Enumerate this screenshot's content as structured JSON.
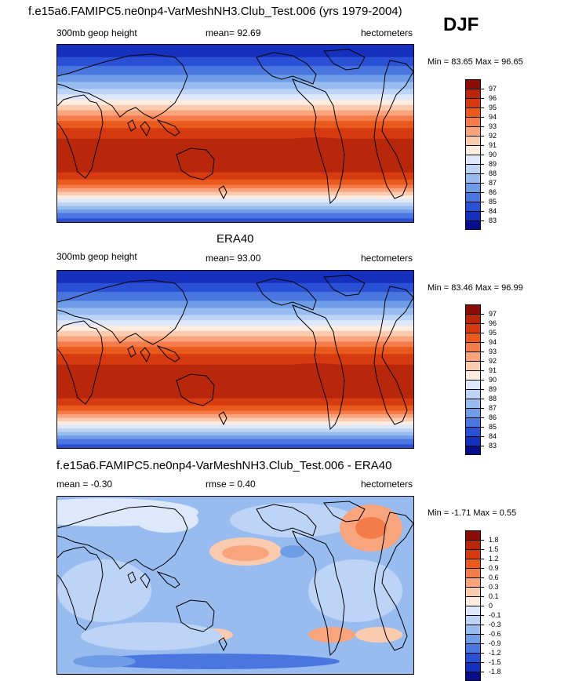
{
  "panel1": {
    "title": "f.e15a6.FAMIPC5.ne0np4-VarMeshNH3.Club_Test.006 (yrs 1979-2004)",
    "left": "300mb geop height",
    "center": "mean=  92.69",
    "right": "hectometers",
    "minmax": "Min =  83.65 Max =  96.65"
  },
  "season": "DJF",
  "panel2": {
    "title": "ERA40",
    "left": "300mb geop height",
    "center": "mean=  93.00",
    "right": "hectometers",
    "minmax": "Min =  83.46 Max =  96.99"
  },
  "panel3": {
    "title": "f.e15a6.FAMIPC5.ne0np4-VarMeshNH3.Club_Test.006 - ERA40",
    "left": "mean =  -0.30",
    "center": "rmse =   0.40",
    "right": "hectometers",
    "minmax": "Min =  -1.71 Max =   0.55"
  },
  "chart_data": [
    {
      "type": "heatmap",
      "title": "f.e15a6.FAMIPC5.ne0np4-VarMeshNH3.Club_Test.006 (yrs 1979-2004)",
      "variable": "300mb geop height",
      "units": "hectometers",
      "mean": 92.69,
      "min": 83.65,
      "max": 96.65,
      "colorbar_levels": [
        "97",
        "96",
        "95",
        "94",
        "93",
        "92",
        "91",
        "90",
        "89",
        "88",
        "87",
        "86",
        "85",
        "84",
        "83"
      ],
      "colors": [
        "#8b0d05",
        "#b8270c",
        "#d63a10",
        "#ea5a1c",
        "#f47b4a",
        "#f8a57e",
        "#fbcbb0",
        "#fdebe0",
        "#dde9fb",
        "#bdd4f6",
        "#98bcef",
        "#6e9ce6",
        "#4a77df",
        "#2a50d6",
        "#1430bd",
        "#060e8e"
      ]
    },
    {
      "type": "heatmap",
      "title": "ERA40",
      "variable": "300mb geop height",
      "units": "hectometers",
      "mean": 93.0,
      "min": 83.46,
      "max": 96.99,
      "colorbar_levels": [
        "97",
        "96",
        "95",
        "94",
        "93",
        "92",
        "91",
        "90",
        "89",
        "88",
        "87",
        "86",
        "85",
        "84",
        "83"
      ],
      "colors": [
        "#8b0d05",
        "#b8270c",
        "#d63a10",
        "#ea5a1c",
        "#f47b4a",
        "#f8a57e",
        "#fbcbb0",
        "#fdebe0",
        "#dde9fb",
        "#bdd4f6",
        "#98bcef",
        "#6e9ce6",
        "#4a77df",
        "#2a50d6",
        "#1430bd",
        "#060e8e"
      ]
    },
    {
      "type": "heatmap",
      "title": "f.e15a6.FAMIPC5.ne0np4-VarMeshNH3.Club_Test.006 - ERA40",
      "units": "hectometers",
      "mean": -0.3,
      "rmse": 0.4,
      "min": -1.71,
      "max": 0.55,
      "colorbar_levels": [
        "1.8",
        "1.5",
        "1.2",
        "0.9",
        "0.6",
        "0.3",
        "0.1",
        "0",
        "-0.1",
        "-0.3",
        "-0.6",
        "-0.9",
        "-1.2",
        "-1.5",
        "-1.8"
      ],
      "colors": [
        "#8b0d05",
        "#b8270c",
        "#d63a10",
        "#ea5a1c",
        "#f47b4a",
        "#f8a57e",
        "#fbcbb0",
        "#fdebe0",
        "#dde9fb",
        "#bdd4f6",
        "#98bcef",
        "#6e9ce6",
        "#4a77df",
        "#2a50d6",
        "#1430bd",
        "#060e8e"
      ]
    }
  ]
}
